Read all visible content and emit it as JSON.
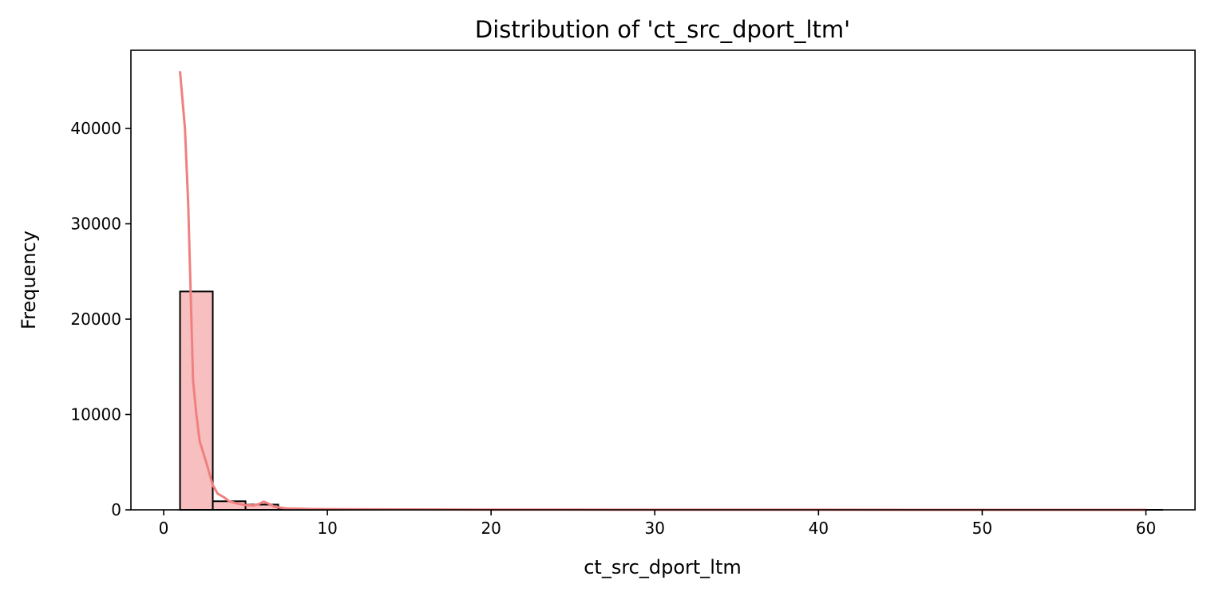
{
  "chart_data": {
    "type": "bar",
    "title": "Distribution of 'ct_src_dport_ltm'",
    "xlabel": "ct_src_dport_ltm",
    "ylabel": "Frequency",
    "xlim": [
      -2,
      63
    ],
    "ylim": [
      0,
      48200
    ],
    "xticks": [
      0,
      10,
      20,
      30,
      40,
      50,
      60
    ],
    "yticks": [
      0,
      10000,
      20000,
      30000,
      40000
    ],
    "grid": false,
    "legend": "none",
    "bar_color": "#f08080",
    "bar_fill_opacity": 0.5,
    "bar_edge_color": "#000000",
    "kde_color": "#f08080",
    "bins": [
      {
        "x0": 1,
        "x1": 3,
        "count": 22900
      },
      {
        "x0": 3,
        "x1": 5,
        "count": 900
      },
      {
        "x0": 5,
        "x1": 7,
        "count": 550
      },
      {
        "x0": 7,
        "x1": 9,
        "count": 80
      },
      {
        "x0": 9,
        "x1": 11,
        "count": 50
      },
      {
        "x0": 11,
        "x1": 13,
        "count": 40
      },
      {
        "x0": 13,
        "x1": 15,
        "count": 30
      },
      {
        "x0": 15,
        "x1": 17,
        "count": 25
      },
      {
        "x0": 17,
        "x1": 19,
        "count": 20
      },
      {
        "x0": 19,
        "x1": 21,
        "count": 15
      },
      {
        "x0": 21,
        "x1": 23,
        "count": 10
      },
      {
        "x0": 23,
        "x1": 25,
        "count": 8
      },
      {
        "x0": 25,
        "x1": 27,
        "count": 6
      },
      {
        "x0": 27,
        "x1": 29,
        "count": 5
      },
      {
        "x0": 29,
        "x1": 31,
        "count": 4
      },
      {
        "x0": 31,
        "x1": 33,
        "count": 3
      },
      {
        "x0": 33,
        "x1": 35,
        "count": 3
      },
      {
        "x0": 35,
        "x1": 37,
        "count": 2
      },
      {
        "x0": 37,
        "x1": 39,
        "count": 2
      },
      {
        "x0": 39,
        "x1": 41,
        "count": 2
      },
      {
        "x0": 41,
        "x1": 43,
        "count": 1
      },
      {
        "x0": 43,
        "x1": 45,
        "count": 1
      },
      {
        "x0": 45,
        "x1": 47,
        "count": 1
      },
      {
        "x0": 47,
        "x1": 49,
        "count": 1
      },
      {
        "x0": 49,
        "x1": 51,
        "count": 1
      },
      {
        "x0": 51,
        "x1": 53,
        "count": 1
      },
      {
        "x0": 53,
        "x1": 55,
        "count": 1
      },
      {
        "x0": 55,
        "x1": 57,
        "count": 1
      },
      {
        "x0": 57,
        "x1": 59,
        "count": 1
      },
      {
        "x0": 59,
        "x1": 61,
        "count": 1
      }
    ],
    "kde": [
      [
        1,
        46000
      ],
      [
        1.3,
        40000
      ],
      [
        1.5,
        32000
      ],
      [
        1.8,
        13500
      ],
      [
        2.0,
        10000
      ],
      [
        2.2,
        7200
      ],
      [
        2.6,
        5000
      ],
      [
        3.0,
        2600
      ],
      [
        3.3,
        1700
      ],
      [
        3.7,
        1300
      ],
      [
        4.0,
        900
      ],
      [
        4.5,
        650
      ],
      [
        5.0,
        500
      ],
      [
        5.5,
        450
      ],
      [
        5.8,
        600
      ],
      [
        6.1,
        850
      ],
      [
        6.4,
        650
      ],
      [
        6.8,
        300
      ],
      [
        7.5,
        150
      ],
      [
        9,
        80
      ],
      [
        11,
        60
      ],
      [
        13,
        50
      ],
      [
        15,
        40
      ],
      [
        20,
        25
      ],
      [
        25,
        15
      ],
      [
        30,
        10
      ],
      [
        40,
        5
      ],
      [
        50,
        3
      ],
      [
        60,
        2
      ]
    ]
  }
}
